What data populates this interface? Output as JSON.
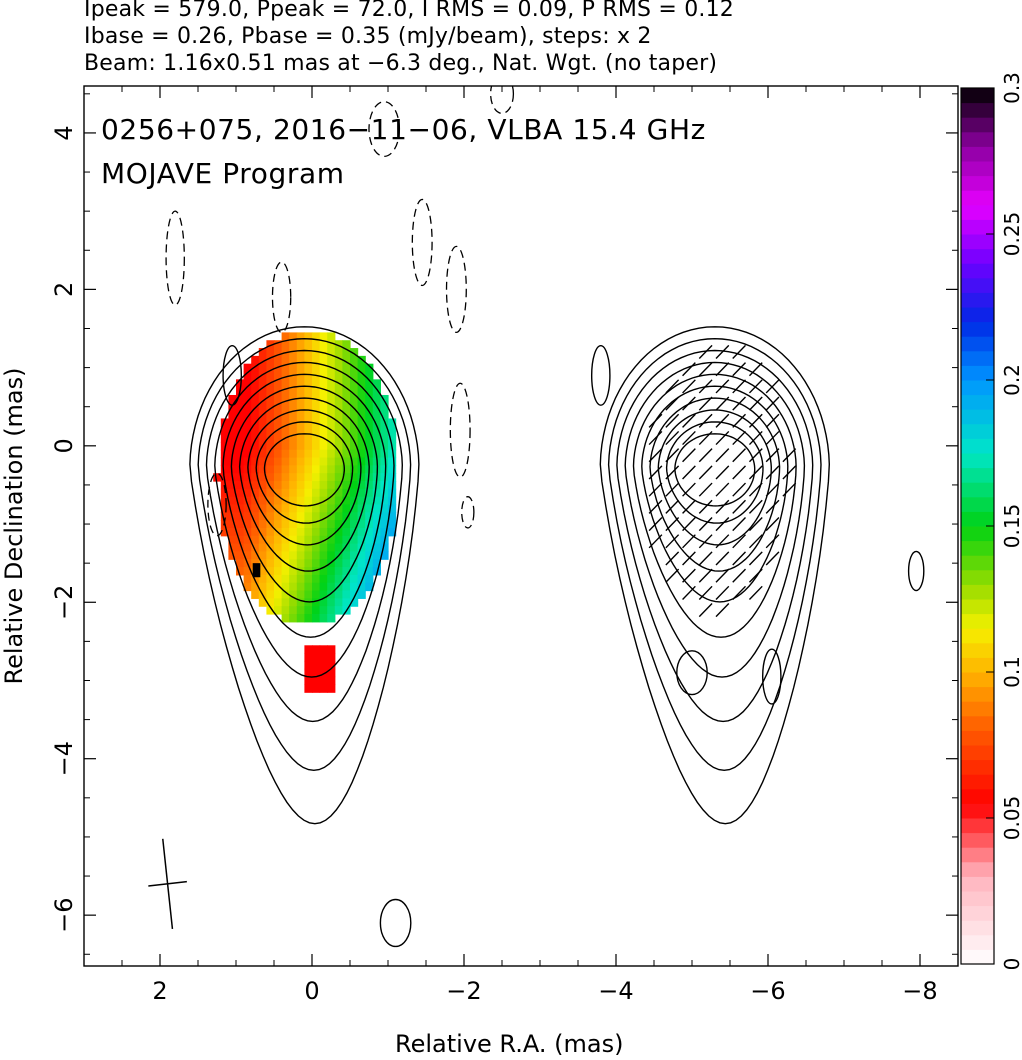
{
  "chart_data": {
    "type": "heatmap",
    "header_lines": [
      "Ipeak = 579.0, Ppeak = 72.0, I RMS = 0.09, P RMS = 0.12",
      "Ibase = 0.26, Pbase = 0.35 (mJy/beam), steps: x 2",
      "Beam: 1.16x0.51 mas at −6.3 deg., Nat. Wgt. (no taper)"
    ],
    "annotations": [
      "0256+075, 2016−11−06, VLBA 15.4 GHz",
      "MOJAVE Program"
    ],
    "xlabel": "Relative R.A. (mas)",
    "ylabel": "Relative Declination (mas)",
    "xlim": [
      3.0,
      -8.5
    ],
    "ylim": [
      -6.65,
      4.6
    ],
    "xticks": [
      2,
      0,
      -2,
      -4,
      -6,
      -8
    ],
    "xtick_labels": [
      "2",
      "0",
      "−2",
      "−4",
      "−6",
      "−8"
    ],
    "yticks": [
      4,
      2,
      0,
      -2,
      -4,
      -6
    ],
    "ytick_labels": [
      "4",
      "2",
      "0",
      "−2",
      "−4",
      "−6"
    ],
    "colorbar": {
      "range": [
        0,
        0.3
      ],
      "ticks": [
        0,
        0.05,
        0.1,
        0.15,
        0.2,
        0.25,
        0.3
      ],
      "tick_labels": [
        "0",
        "0.05",
        "0.1",
        "0.15",
        "0.2",
        "0.25",
        "0.3"
      ]
    },
    "source_panel": {
      "center": [
        0.1,
        -0.3
      ],
      "contour_levels": 10,
      "fractional_polarization_color_range": [
        0.05,
        0.22
      ]
    },
    "evpa_panel": {
      "center": [
        -5.3,
        -0.3
      ]
    },
    "beam": {
      "major_mas": 1.16,
      "minor_mas": 0.51,
      "pa_deg": -6.3,
      "position": [
        1.9,
        -5.6
      ]
    }
  }
}
